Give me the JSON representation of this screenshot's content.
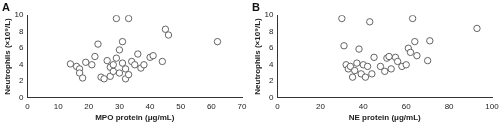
{
  "chart_data": [
    {
      "type": "scatter",
      "title": "A",
      "x_label": "MPO protein (μg/mL)",
      "y_label": "Neutrophils (×10⁹/L)",
      "x": [
        14,
        16,
        17,
        17,
        18,
        19,
        21,
        22,
        23,
        24,
        25,
        26,
        27,
        27,
        28,
        28,
        29,
        29,
        30,
        30,
        31,
        31,
        32,
        32,
        33,
        33,
        34,
        35,
        36,
        37,
        38,
        40,
        41,
        44,
        45,
        46,
        62
      ],
      "values": [
        4.1,
        3.8,
        3.5,
        3.0,
        2.4,
        4.3,
        4.0,
        5.0,
        6.5,
        2.5,
        2.3,
        4.5,
        3.7,
        2.6,
        3.2,
        4.0,
        9.6,
        4.8,
        3.0,
        5.8,
        4.2,
        6.8,
        3.5,
        2.3,
        2.8,
        9.6,
        4.4,
        4.0,
        5.3,
        3.6,
        4.0,
        4.9,
        5.1,
        4.4,
        8.3,
        7.6,
        6.8
      ],
      "xlim": [
        0,
        70
      ],
      "xticks": [
        0,
        10,
        20,
        30,
        40,
        50,
        60,
        70
      ],
      "ylim": [
        0,
        10
      ],
      "yticks": [
        0,
        2,
        4,
        6,
        8,
        10
      ],
      "grid": false,
      "marker": "circle",
      "color": "#555555"
    },
    {
      "type": "scatter",
      "title": "B",
      "x_label": "NE protein (μg/mL)",
      "y_label": "Neutrophils (×10⁹/L)",
      "x": [
        30,
        31,
        32,
        33,
        34,
        35,
        36,
        37,
        38,
        39,
        40,
        41,
        42,
        43,
        44,
        45,
        48,
        50,
        51,
        52,
        53,
        55,
        56,
        58,
        60,
        61,
        62,
        63,
        64,
        65,
        70,
        71,
        93
      ],
      "values": [
        9.6,
        6.3,
        4.0,
        3.5,
        3.8,
        2.5,
        3.3,
        4.2,
        5.9,
        2.9,
        4.0,
        2.5,
        3.8,
        9.2,
        2.9,
        4.9,
        3.8,
        3.2,
        4.8,
        5.0,
        3.5,
        4.9,
        4.4,
        3.8,
        4.0,
        6.0,
        5.5,
        9.6,
        6.8,
        5.1,
        4.5,
        6.9,
        8.4
      ],
      "xlim": [
        0,
        100
      ],
      "xticks": [
        0,
        20,
        40,
        60,
        80,
        100
      ],
      "ylim": [
        0,
        10
      ],
      "yticks": [
        0,
        2,
        4,
        6,
        8,
        10
      ],
      "grid": false,
      "marker": "circle",
      "color": "#555555"
    }
  ]
}
